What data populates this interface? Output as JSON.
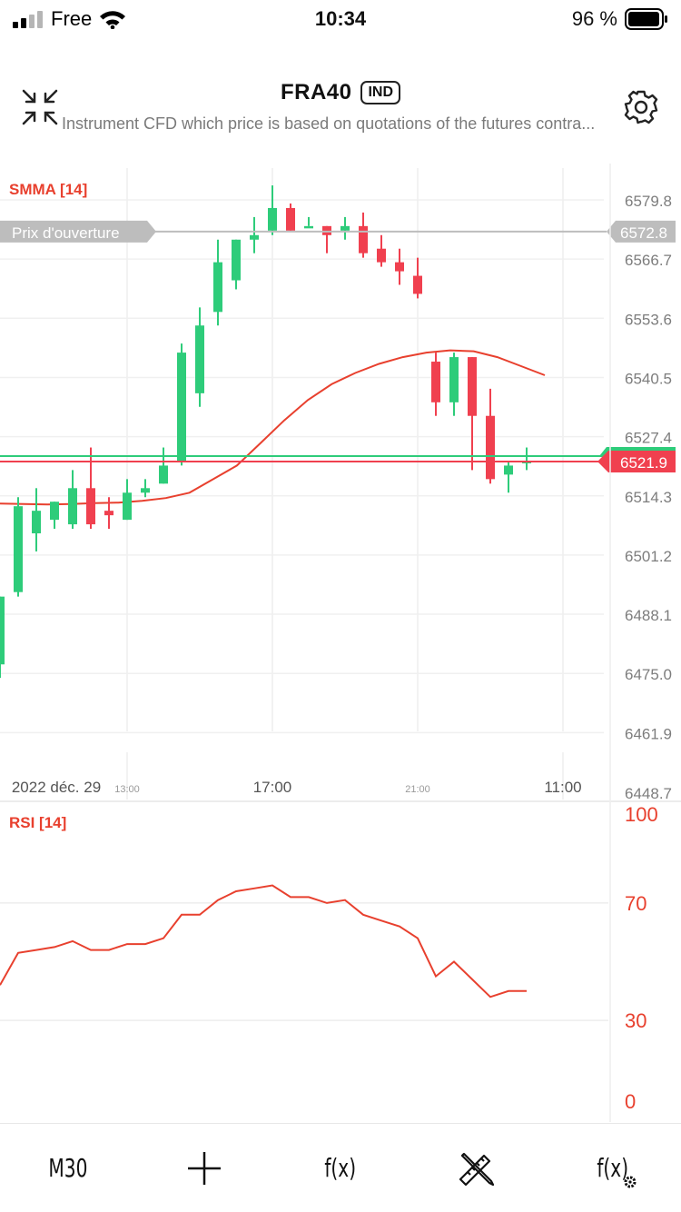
{
  "status_bar": {
    "carrier": "Free",
    "time": "10:34",
    "battery": "96 %"
  },
  "header": {
    "title": "FRA40",
    "badge": "IND",
    "subtitle": "Instrument CFD which price is based on quotations of the futures contra..."
  },
  "main_chart": {
    "indicator_label": "SMMA [14]",
    "opening_label": "Prix d'ouverture",
    "opening_price": "6572.8",
    "current_price": "6521.9",
    "y_ticks": [
      "6579.8",
      "6566.7",
      "6553.6",
      "6540.5",
      "6527.4",
      "6514.3",
      "6501.2",
      "6488.1",
      "6475.0",
      "6461.9",
      "6448.7"
    ],
    "x_labels": [
      {
        "text": "2022 déc. 29",
        "size": "large"
      },
      {
        "text": "13:00",
        "size": "small"
      },
      {
        "text": "17:00",
        "size": "large"
      },
      {
        "text": "21:00",
        "size": "small"
      },
      {
        "text": "11:00",
        "size": "large"
      }
    ]
  },
  "chart_data": [
    {
      "type": "candlestick",
      "ylim": [
        6448.7,
        6585.0
      ],
      "candles": [
        {
          "o": 6477,
          "c": 6492,
          "h": 6492,
          "l": 6474,
          "dir": "up"
        },
        {
          "o": 6493,
          "c": 6512,
          "h": 6514,
          "l": 6492,
          "dir": "up"
        },
        {
          "o": 6506,
          "c": 6511,
          "h": 6516,
          "l": 6502,
          "dir": "up"
        },
        {
          "o": 6509,
          "c": 6513,
          "h": 6513,
          "l": 6507,
          "dir": "up"
        },
        {
          "o": 6508,
          "c": 6516,
          "h": 6520,
          "l": 6507,
          "dir": "up"
        },
        {
          "o": 6516,
          "c": 6508,
          "h": 6525,
          "l": 6507,
          "dir": "down"
        },
        {
          "o": 6511,
          "c": 6510,
          "h": 6514,
          "l": 6507,
          "dir": "down"
        },
        {
          "o": 6509,
          "c": 6515,
          "h": 6518,
          "l": 6509,
          "dir": "up"
        },
        {
          "o": 6515,
          "c": 6516,
          "h": 6518,
          "l": 6514,
          "dir": "up"
        },
        {
          "o": 6517,
          "c": 6521,
          "h": 6525,
          "l": 6517,
          "dir": "up"
        },
        {
          "o": 6522,
          "c": 6546,
          "h": 6548,
          "l": 6521,
          "dir": "up"
        },
        {
          "o": 6537,
          "c": 6552,
          "h": 6556,
          "l": 6534,
          "dir": "up"
        },
        {
          "o": 6555,
          "c": 6566,
          "h": 6571,
          "l": 6552,
          "dir": "up"
        },
        {
          "o": 6562,
          "c": 6571,
          "h": 6571,
          "l": 6560,
          "dir": "up"
        },
        {
          "o": 6571,
          "c": 6572,
          "h": 6576,
          "l": 6568,
          "dir": "up"
        },
        {
          "o": 6573,
          "c": 6578,
          "h": 6583,
          "l": 6572,
          "dir": "up"
        },
        {
          "o": 6578,
          "c": 6573,
          "h": 6579,
          "l": 6573,
          "dir": "down"
        },
        {
          "o": 6574,
          "c": 6574,
          "h": 6576,
          "l": 6574,
          "dir": "up"
        },
        {
          "o": 6574,
          "c": 6572,
          "h": 6574,
          "l": 6568,
          "dir": "down"
        },
        {
          "o": 6573,
          "c": 6574,
          "h": 6576,
          "l": 6571,
          "dir": "up"
        },
        {
          "o": 6574,
          "c": 6568,
          "h": 6577,
          "l": 6567,
          "dir": "down"
        },
        {
          "o": 6569,
          "c": 6566,
          "h": 6572,
          "l": 6565,
          "dir": "down"
        },
        {
          "o": 6566,
          "c": 6564,
          "h": 6569,
          "l": 6561,
          "dir": "down"
        },
        {
          "o": 6563,
          "c": 6559,
          "h": 6567,
          "l": 6558,
          "dir": "down"
        },
        {
          "o": 6544,
          "c": 6535,
          "h": 6546,
          "l": 6532,
          "dir": "down"
        },
        {
          "o": 6535,
          "c": 6545,
          "h": 6546,
          "l": 6532,
          "dir": "up"
        },
        {
          "o": 6545,
          "c": 6532,
          "h": 6545,
          "l": 6520,
          "dir": "down"
        },
        {
          "o": 6532,
          "c": 6518,
          "h": 6538,
          "l": 6517,
          "dir": "down"
        },
        {
          "o": 6519,
          "c": 6521,
          "h": 6522,
          "l": 6515,
          "dir": "up"
        },
        {
          "o": 6522,
          "c": 6522,
          "h": 6525,
          "l": 6520,
          "dir": "up"
        }
      ],
      "smma": [
        6512.6,
        6512.5,
        6512.4,
        6512.5,
        6512.7,
        6512.8,
        6513.2,
        6513.8,
        6515.0,
        6518.0,
        6521.0,
        6526.0,
        6531.0,
        6535.5,
        6539.0,
        6541.5,
        6543.5,
        6545.0,
        6546.0,
        6546.5,
        6546.3,
        6545.0,
        6543.0,
        6541.0
      ]
    },
    {
      "type": "line",
      "label": "RSI [14]",
      "ylim": [
        0,
        100
      ],
      "y_ticks": [
        "100",
        "70",
        "30",
        "0"
      ],
      "values": [
        42,
        53,
        54,
        55,
        57,
        54,
        54,
        56,
        56,
        58,
        66,
        66,
        71,
        74,
        75,
        76,
        72,
        72,
        70,
        71,
        66,
        64,
        62,
        58,
        45,
        50,
        44,
        38,
        40,
        40
      ]
    }
  ],
  "toolbar": {
    "timeframe": "M30",
    "indicator_label": "f(x)",
    "indicator_settings_label": "f(x)"
  },
  "colors": {
    "up": "#2ecc7a",
    "down": "#f0404f",
    "smma": "#e8402e",
    "rsi": "#e8402e",
    "axis_text": "#7d7d7d"
  }
}
